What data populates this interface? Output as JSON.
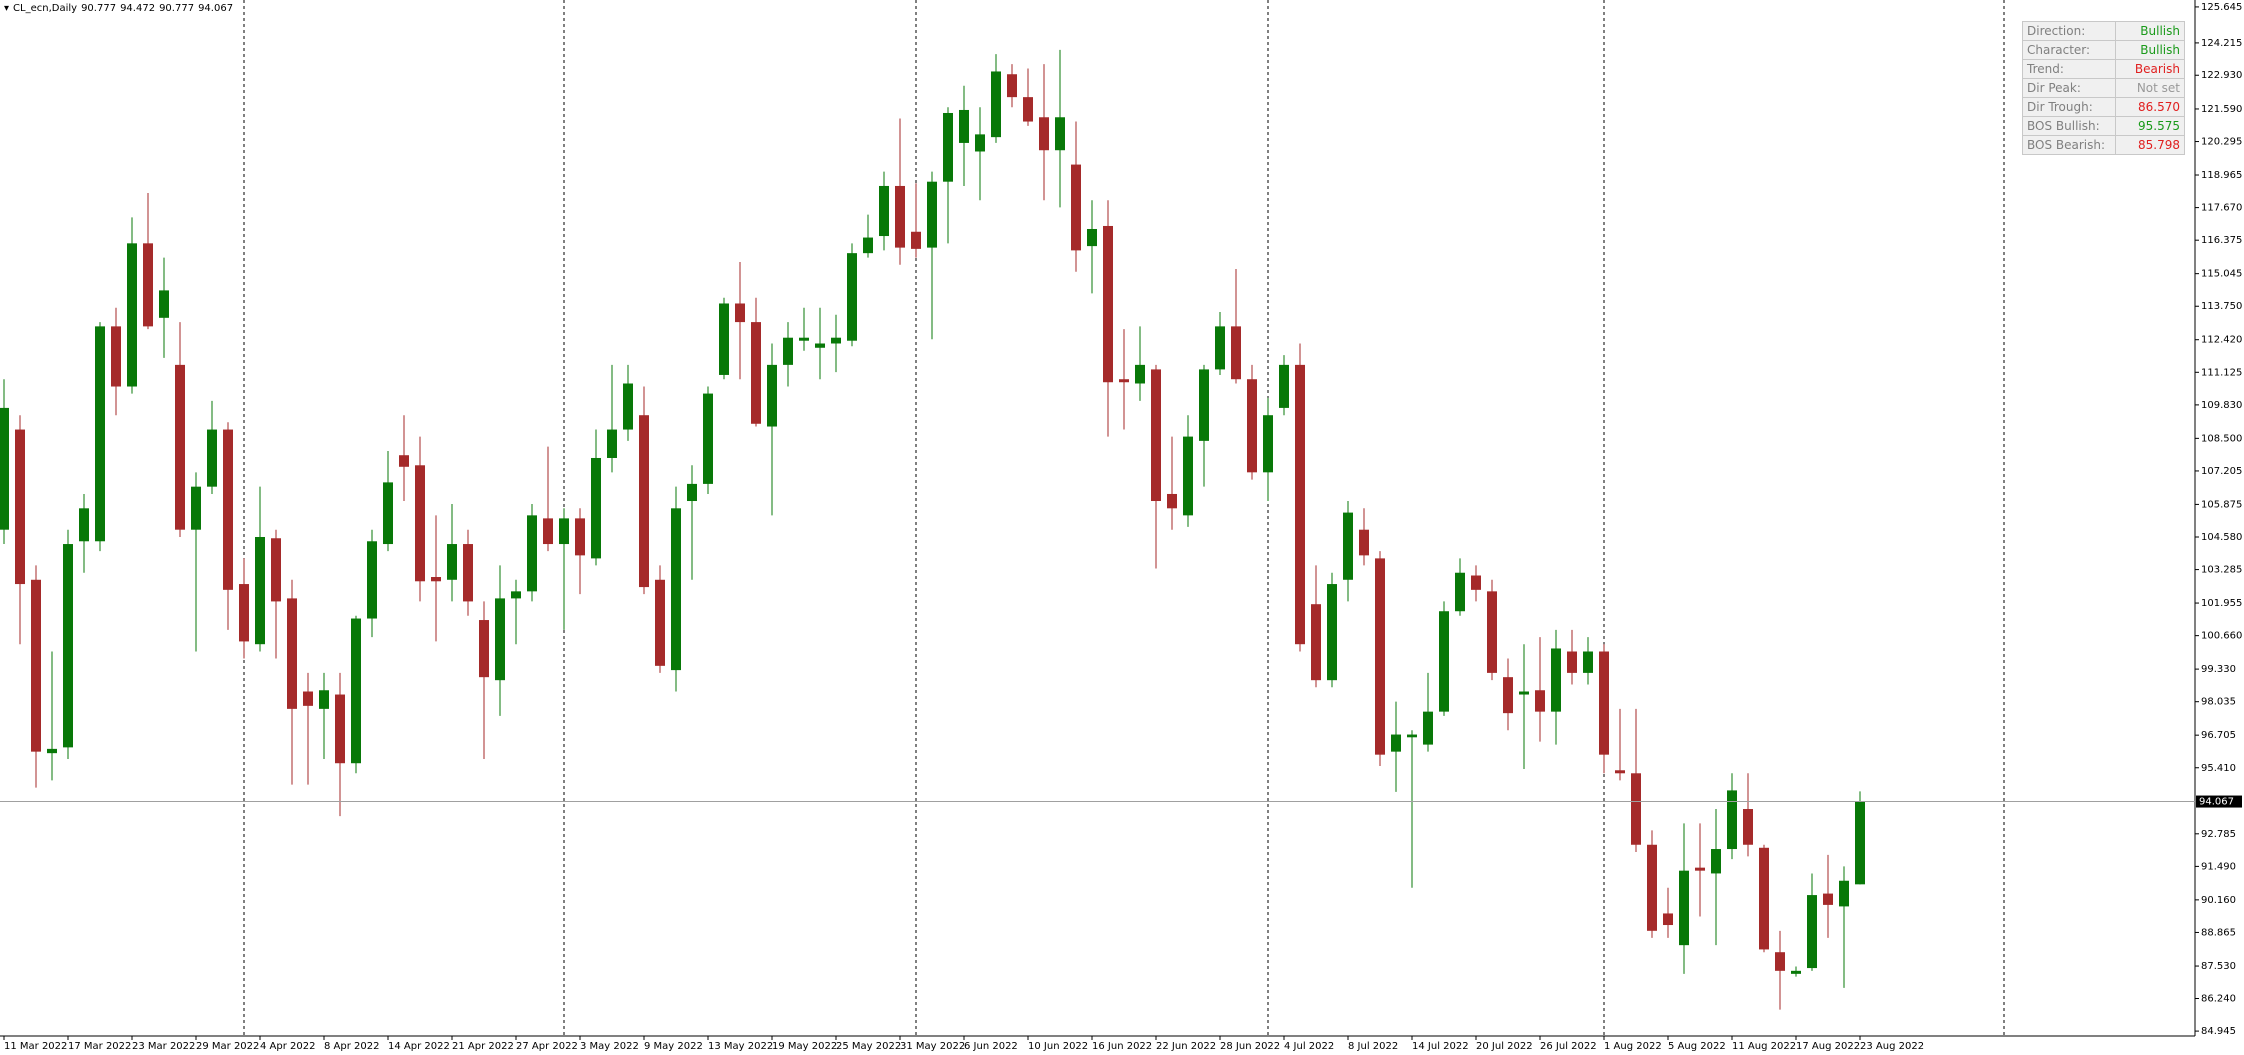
{
  "chart_data": {
    "type": "candlestick",
    "title": "CL_ecn,Daily",
    "categories": [
      "11 Mar 2022",
      null,
      null,
      null,
      "17 Mar 2022",
      null,
      null,
      null,
      "23 Mar 2022",
      null,
      null,
      null,
      "29 Mar 2022",
      null,
      null,
      null,
      "4 Apr 2022",
      null,
      null,
      null,
      "8 Apr 2022",
      null,
      null,
      null,
      "14 Apr 2022",
      null,
      null,
      null,
      "21 Apr 2022",
      null,
      null,
      null,
      "27 Apr 2022",
      null,
      null,
      null,
      "3 May 2022",
      null,
      null,
      null,
      "9 May 2022",
      null,
      null,
      null,
      "13 May 2022",
      null,
      null,
      null,
      "19 May 2022",
      null,
      null,
      null,
      "25 May 2022",
      null,
      null,
      null,
      "31 May 2022",
      null,
      null,
      null,
      "6 Jun 2022",
      null,
      null,
      null,
      "10 Jun 2022",
      null,
      null,
      null,
      "16 Jun 2022",
      null,
      null,
      null,
      "22 Jun 2022",
      null,
      null,
      null,
      "28 Jun 2022",
      null,
      null,
      null,
      "4 Jul 2022",
      null,
      null,
      null,
      "8 Jul 2022",
      null,
      null,
      null,
      "14 Jul 2022",
      null,
      null,
      null,
      "20 Jul 2022",
      null,
      null,
      null,
      "26 Jul 2022",
      null,
      null,
      null,
      "1 Aug 2022",
      null,
      null,
      null,
      "5 Aug 2022",
      null,
      null,
      null,
      "11 Aug 2022",
      null,
      null,
      null,
      "17 Aug 2022",
      null,
      null,
      null,
      "23 Aug 2022"
    ],
    "open": [
      104.87,
      108.85,
      102.88,
      95.99,
      96.22,
      104.41,
      104.41,
      112.95,
      110.56,
      116.25,
      113.29,
      111.42,
      104.87,
      106.58,
      108.85,
      102.71,
      100.32,
      104.53,
      102.14,
      98.44,
      97.75,
      98.32,
      95.59,
      101.34,
      104.3,
      107.83,
      107.43,
      102.99,
      102.88,
      104.3,
      101.28,
      98.89,
      102.14,
      102.42,
      105.32,
      104.3,
      105.32,
      103.73,
      107.72,
      108.85,
      109.42,
      102.88,
      99.29,
      106.01,
      106.69,
      111.02,
      113.86,
      113.12,
      108.97,
      111.42,
      112.38,
      112.1,
      112.27,
      112.38,
      115.86,
      116.54,
      118.53,
      116.71,
      116.08,
      118.7,
      120.24,
      119.9,
      120.47,
      122.97,
      122.06,
      121.26,
      119.95,
      119.38,
      116.14,
      116.94,
      110.85,
      110.68,
      111.24,
      106.29,
      105.44,
      108.4,
      111.24,
      112.95,
      110.85,
      107.15,
      109.71,
      111.42,
      101.91,
      98.89,
      102.88,
      104.87,
      103.73,
      96.05,
      96.62,
      96.33,
      97.64,
      101.63,
      103.05,
      102.42,
      99.01,
      98.32,
      98.49,
      97.64,
      100.03,
      99.18,
      100.03,
      95.31,
      95.19,
      92.35,
      89.62,
      88.36,
      91.44,
      91.21,
      92.18,
      93.77,
      92.23,
      88.08,
      87.22,
      87.45,
      90.41,
      89.9,
      90.777
    ],
    "high": [
      110.85,
      109.42,
      103.45,
      100.03,
      104.87,
      106.29,
      113.12,
      113.69,
      117.28,
      118.25,
      115.68,
      113.12,
      107.15,
      109.99,
      109.14,
      103.73,
      106.58,
      104.87,
      102.88,
      99.18,
      99.18,
      99.18,
      101.45,
      104.87,
      108.0,
      109.42,
      108.57,
      105.44,
      105.89,
      104.87,
      102.02,
      103.45,
      102.88,
      105.89,
      108.17,
      105.72,
      105.72,
      108.85,
      111.42,
      111.42,
      110.56,
      103.45,
      106.58,
      107.43,
      110.56,
      114.09,
      115.51,
      114.09,
      112.27,
      113.12,
      113.69,
      113.69,
      113.41,
      116.25,
      117.39,
      119.1,
      121.21,
      118.64,
      119.1,
      121.66,
      122.51,
      121.66,
      123.77,
      123.37,
      123.2,
      123.37,
      123.94,
      121.09,
      117.96,
      117.96,
      112.84,
      112.95,
      111.42,
      108.57,
      109.42,
      111.42,
      113.52,
      115.23,
      111.42,
      110.11,
      111.81,
      112.27,
      103.45,
      103.16,
      106.01,
      105.72,
      104.02,
      98.04,
      96.9,
      99.18,
      102.02,
      103.73,
      103.45,
      102.88,
      99.75,
      100.32,
      100.6,
      100.89,
      100.89,
      100.6,
      100.32,
      97.75,
      97.75,
      92.92,
      90.64,
      93.2,
      93.2,
      93.77,
      95.19,
      95.19,
      92.35,
      88.93,
      87.51,
      91.21,
      91.95,
      91.49,
      94.472
    ],
    "low": [
      104.3,
      100.32,
      94.62,
      94.91,
      95.76,
      103.16,
      104.02,
      109.42,
      110.28,
      112.84,
      111.7,
      104.58,
      100.03,
      106.29,
      100.89,
      99.75,
      100.03,
      99.75,
      94.74,
      94.74,
      95.76,
      93.49,
      95.19,
      100.6,
      104.02,
      106.01,
      102.02,
      100.43,
      102.02,
      101.45,
      95.76,
      97.47,
      100.32,
      102.02,
      104.02,
      100.89,
      102.31,
      103.45,
      107.15,
      108.4,
      102.31,
      99.18,
      98.44,
      102.88,
      106.29,
      110.85,
      110.85,
      108.97,
      105.44,
      110.56,
      111.98,
      110.85,
      111.13,
      112.16,
      115.68,
      115.97,
      115.4,
      115.68,
      112.44,
      116.25,
      118.53,
      117.96,
      120.24,
      121.66,
      120.92,
      117.96,
      117.68,
      115.12,
      114.26,
      108.57,
      108.85,
      109.99,
      103.33,
      104.87,
      104.98,
      106.58,
      111.02,
      110.68,
      106.86,
      106.01,
      109.42,
      100.03,
      98.61,
      98.61,
      102.02,
      103.45,
      95.48,
      94.45,
      90.64,
      96.05,
      97.47,
      101.45,
      102.02,
      98.89,
      96.9,
      95.36,
      96.45,
      96.33,
      98.72,
      98.72,
      95.19,
      94.91,
      92.06,
      88.65,
      88.65,
      87.22,
      89.5,
      88.36,
      91.78,
      91.89,
      88.08,
      85.8,
      87.11,
      87.34,
      88.65,
      86.66,
      90.777
    ],
    "close": [
      109.71,
      102.71,
      96.05,
      96.16,
      104.3,
      105.72,
      112.95,
      110.56,
      116.25,
      112.95,
      114.38,
      104.87,
      106.58,
      108.85,
      102.48,
      100.43,
      104.58,
      102.02,
      97.75,
      97.87,
      98.49,
      95.59,
      101.34,
      104.41,
      106.75,
      107.37,
      102.82,
      102.82,
      104.3,
      102.02,
      99.01,
      102.14,
      102.42,
      105.44,
      104.3,
      105.32,
      103.85,
      107.72,
      108.85,
      110.68,
      102.59,
      99.46,
      105.72,
      106.69,
      110.28,
      113.86,
      113.12,
      109.08,
      111.42,
      112.5,
      112.5,
      112.27,
      112.5,
      115.86,
      116.48,
      118.53,
      116.08,
      116.03,
      118.7,
      121.43,
      121.55,
      120.58,
      123.08,
      122.06,
      121.09,
      119.95,
      121.26,
      115.97,
      116.82,
      110.73,
      110.73,
      111.42,
      106.01,
      105.72,
      108.57,
      111.24,
      112.95,
      110.85,
      107.15,
      109.42,
      111.42,
      100.32,
      98.89,
      102.71,
      105.55,
      103.85,
      95.93,
      96.73,
      96.73,
      97.64,
      101.63,
      103.16,
      102.48,
      99.18,
      97.58,
      98.44,
      97.64,
      100.15,
      99.18,
      100.03,
      95.93,
      95.19,
      92.35,
      88.93,
      89.16,
      91.32,
      91.32,
      92.18,
      94.51,
      92.35,
      88.19,
      87.34,
      87.34,
      90.35,
      89.96,
      90.92,
      94.067
    ],
    "up_color": "#087808",
    "down_color": "#a52a2a",
    "ylim": [
      84.75,
      125.92
    ],
    "yticks": [
      125.645,
      124.215,
      {
        "value": 122.93,
        "label": "122.930"
      },
      {
        "value": 121.59,
        "label": "121.590"
      },
      120.295,
      118.965,
      {
        "value": 117.67,
        "label": "117.670"
      },
      116.375,
      115.045,
      {
        "value": 113.75,
        "label": "113.750"
      },
      {
        "value": 112.42,
        "label": "112.420"
      },
      111.125,
      {
        "value": 109.83,
        "label": "109.830"
      },
      {
        "value": 108.5,
        "label": "108.500"
      },
      107.205,
      105.875,
      {
        "value": 104.58,
        "label": "104.580"
      },
      103.285,
      101.955,
      {
        "value": 100.66,
        "label": "100.660"
      },
      {
        "value": 99.33,
        "label": "99.330"
      },
      98.035,
      96.705,
      {
        "value": 95.41,
        "label": "95.410"
      },
      92.785,
      {
        "value": 91.49,
        "label": "91.490"
      },
      {
        "value": 90.16,
        "label": "90.160"
      },
      88.865,
      {
        "value": 87.53,
        "label": "87.530"
      },
      {
        "value": 86.24,
        "label": "86.240"
      },
      84.945
    ],
    "grid": false
  },
  "panel": {
    "rows": [
      {
        "label": "Direction:",
        "value": "Bullish",
        "color": "#1a9a1a"
      },
      {
        "label": "Character:",
        "value": "Bullish",
        "color": "#1a9a1a"
      },
      {
        "label": "Trend:",
        "value": "Bearish",
        "color": "#e02020"
      },
      {
        "label": "Dir Peak:",
        "value": "Not set",
        "color": "#999999"
      },
      {
        "label": "Dir Trough:",
        "value": "86.570",
        "color": "#e02020"
      },
      {
        "label": "BOS Bullish:",
        "value": "95.575",
        "color": "#1a9a1a"
      },
      {
        "label": "BOS Bearish:",
        "value": "85.798",
        "color": "#e02020"
      }
    ]
  }
}
